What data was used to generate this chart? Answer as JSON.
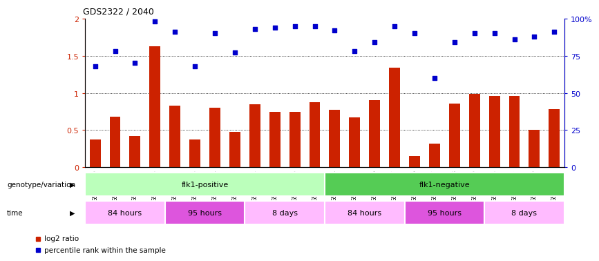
{
  "title": "GDS2322 / 2040",
  "samples": [
    "GSM86370",
    "GSM86371",
    "GSM86372",
    "GSM86373",
    "GSM86362",
    "GSM86363",
    "GSM86364",
    "GSM86365",
    "GSM86354",
    "GSM86355",
    "GSM86356",
    "GSM86357",
    "GSM86374",
    "GSM86375",
    "GSM86376",
    "GSM86377",
    "GSM86366",
    "GSM86367",
    "GSM86368",
    "GSM86369",
    "GSM86358",
    "GSM86359",
    "GSM86360",
    "GSM86361"
  ],
  "log2_ratio": [
    0.37,
    0.68,
    0.42,
    1.63,
    0.83,
    0.37,
    0.8,
    0.48,
    0.85,
    0.75,
    0.75,
    0.88,
    0.77,
    0.67,
    0.9,
    1.34,
    0.15,
    0.32,
    0.86,
    0.99,
    0.96,
    0.96,
    0.5,
    0.78
  ],
  "percentile": [
    68,
    78,
    70,
    98,
    91,
    68,
    90,
    77,
    93,
    94,
    95,
    95,
    92,
    78,
    84,
    95,
    90,
    60,
    84,
    90,
    90,
    86,
    88,
    91
  ],
  "bar_color": "#cc2200",
  "dot_color": "#0000cc",
  "ylim_left": [
    0,
    2
  ],
  "ylim_right": [
    0,
    100
  ],
  "yticks_left": [
    0,
    0.5,
    1.0,
    1.5,
    2.0
  ],
  "yticks_right": [
    0,
    25,
    50,
    75,
    100
  ],
  "yticklabels_right": [
    "0",
    "25",
    "50",
    "75",
    "100%"
  ],
  "hlines": [
    0.5,
    1.0,
    1.5
  ],
  "genotype_groups": [
    {
      "label": "flk1-positive",
      "start": 0,
      "end": 12,
      "color": "#bbffbb"
    },
    {
      "label": "flk1-negative",
      "start": 12,
      "end": 24,
      "color": "#55cc55"
    }
  ],
  "time_groups": [
    {
      "label": "84 hours",
      "start": 0,
      "end": 4,
      "color": "#ffbbff"
    },
    {
      "label": "95 hours",
      "start": 4,
      "end": 8,
      "color": "#dd55dd"
    },
    {
      "label": "8 days",
      "start": 8,
      "end": 12,
      "color": "#ffbbff"
    },
    {
      "label": "84 hours",
      "start": 12,
      "end": 16,
      "color": "#ffbbff"
    },
    {
      "label": "95 hours",
      "start": 16,
      "end": 20,
      "color": "#dd55dd"
    },
    {
      "label": "8 days",
      "start": 20,
      "end": 24,
      "color": "#ffbbff"
    }
  ],
  "legend_label_bar": "log2 ratio",
  "legend_label_dot": "percentile rank within the sample",
  "label_genotype": "genotype/variation",
  "label_time": "time"
}
